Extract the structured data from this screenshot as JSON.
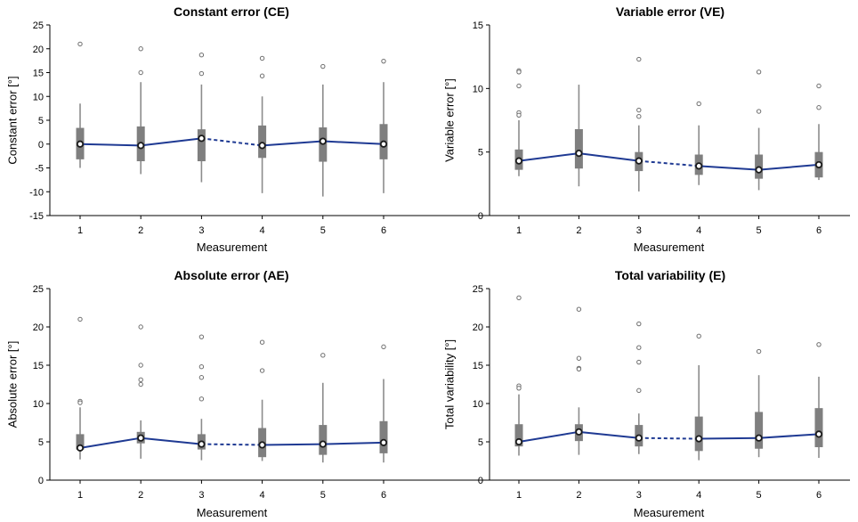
{
  "colors": {
    "line": "#1f3a93",
    "box": "#7f7f7f",
    "whisker": "#8c8c8c",
    "outlier": "#6f6f6f",
    "axis": "#000000"
  },
  "chart_data": [
    {
      "type": "box",
      "title": "Constant error (CE)",
      "xlabel": "Measurement",
      "ylabel": "Constant error [°]",
      "categories": [
        "1",
        "2",
        "3",
        "4",
        "5",
        "6"
      ],
      "ylim": [
        -15,
        25
      ],
      "yticks": [
        "-15",
        "-10",
        "-5",
        "0",
        "5",
        "10",
        "15",
        "20",
        "25"
      ],
      "median_line": [
        0,
        -0.3,
        1.2,
        -0.3,
        0.6,
        0
      ],
      "dashed_segment": [
        3,
        4
      ],
      "boxes": [
        {
          "whisker_low": -5,
          "q1": -3.2,
          "q3": 3.4,
          "whisker_high": 8.5,
          "outliers": [
            21
          ]
        },
        {
          "whisker_low": -6.3,
          "q1": -3.6,
          "q3": 3.7,
          "whisker_high": 13,
          "outliers": [
            20,
            15
          ]
        },
        {
          "whisker_low": -8,
          "q1": -3.6,
          "q3": 3.1,
          "whisker_high": 12.5,
          "outliers": [
            18.7,
            14.8
          ]
        },
        {
          "whisker_low": -10.3,
          "q1": -2.9,
          "q3": 3.9,
          "whisker_high": 10,
          "outliers": [
            18,
            14.3
          ]
        },
        {
          "whisker_low": -11,
          "q1": -3.7,
          "q3": 3.5,
          "whisker_high": 12.5,
          "outliers": [
            16.3
          ]
        },
        {
          "whisker_low": -10.3,
          "q1": -3.2,
          "q3": 4.2,
          "whisker_high": 13,
          "outliers": [
            17.4
          ]
        }
      ]
    },
    {
      "type": "box",
      "title": "Variable error (VE)",
      "xlabel": "Measurement",
      "ylabel": "Variable error [°]",
      "categories": [
        "1",
        "2",
        "3",
        "4",
        "5",
        "6"
      ],
      "ylim": [
        0,
        15
      ],
      "yticks": [
        "0",
        "5",
        "10",
        "15"
      ],
      "median_line": [
        4.3,
        4.9,
        4.3,
        3.9,
        3.6,
        4
      ],
      "dashed_segment": [
        3,
        4
      ],
      "boxes": [
        {
          "whisker_low": 3.1,
          "q1": 3.6,
          "q3": 5.2,
          "whisker_high": 7.5,
          "outliers": [
            11.4,
            11.3,
            10.2,
            8.1,
            7.9
          ]
        },
        {
          "whisker_low": 2.3,
          "q1": 3.7,
          "q3": 6.8,
          "whisker_high": 10.3,
          "outliers": []
        },
        {
          "whisker_low": 1.9,
          "q1": 3.5,
          "q3": 5,
          "whisker_high": 7.1,
          "outliers": [
            12.3,
            8.3,
            7.8
          ]
        },
        {
          "whisker_low": 2.4,
          "q1": 3.2,
          "q3": 4.8,
          "whisker_high": 7.1,
          "outliers": [
            8.8
          ]
        },
        {
          "whisker_low": 2,
          "q1": 2.9,
          "q3": 4.8,
          "whisker_high": 6.9,
          "outliers": [
            11.3,
            8.2
          ]
        },
        {
          "whisker_low": 2.8,
          "q1": 3,
          "q3": 5,
          "whisker_high": 7.2,
          "outliers": [
            10.2,
            8.5
          ]
        }
      ]
    },
    {
      "type": "box",
      "title": "Absolute error (AE)",
      "xlabel": "Measurement",
      "ylabel": "Absolute error [°]",
      "categories": [
        "1",
        "2",
        "3",
        "4",
        "5",
        "6"
      ],
      "ylim": [
        0,
        25
      ],
      "yticks": [
        "0",
        "5",
        "10",
        "15",
        "20",
        "25"
      ],
      "median_line": [
        4.2,
        5.5,
        4.7,
        4.6,
        4.7,
        4.9
      ],
      "dashed_segment": [
        3,
        4
      ],
      "boxes": [
        {
          "whisker_low": 2.7,
          "q1": 4,
          "q3": 6,
          "whisker_high": 9.5,
          "outliers": [
            21,
            10.3,
            10.1
          ]
        },
        {
          "whisker_low": 2.8,
          "q1": 4.8,
          "q3": 6.3,
          "whisker_high": 7.8,
          "outliers": [
            20,
            15,
            13.1,
            12.5
          ]
        },
        {
          "whisker_low": 2.6,
          "q1": 4,
          "q3": 6,
          "whisker_high": 8,
          "outliers": [
            18.7,
            14.8,
            13.4,
            10.6
          ]
        },
        {
          "whisker_low": 2.5,
          "q1": 3,
          "q3": 6.8,
          "whisker_high": 10.5,
          "outliers": [
            18,
            14.3
          ]
        },
        {
          "whisker_low": 2.3,
          "q1": 3.3,
          "q3": 7.2,
          "whisker_high": 12.7,
          "outliers": [
            16.3
          ]
        },
        {
          "whisker_low": 2.3,
          "q1": 3.5,
          "q3": 7.7,
          "whisker_high": 13.2,
          "outliers": [
            17.4
          ]
        }
      ]
    },
    {
      "type": "box",
      "title": "Total variability (E)",
      "xlabel": "Measurement",
      "ylabel": "Total variability [°]",
      "categories": [
        "1",
        "2",
        "3",
        "4",
        "5",
        "6"
      ],
      "ylim": [
        0,
        25
      ],
      "yticks": [
        "0",
        "5",
        "10",
        "15",
        "20",
        "25"
      ],
      "median_line": [
        5,
        6.3,
        5.5,
        5.4,
        5.5,
        6
      ],
      "dashed_segment": [
        3,
        4
      ],
      "boxes": [
        {
          "whisker_low": 3.2,
          "q1": 4.4,
          "q3": 7.3,
          "whisker_high": 11.2,
          "outliers": [
            23.8,
            12.3,
            12
          ]
        },
        {
          "whisker_low": 3.3,
          "q1": 5.1,
          "q3": 7.3,
          "whisker_high": 9.5,
          "outliers": [
            22.3,
            15.9,
            14.6,
            14.5
          ]
        },
        {
          "whisker_low": 3.4,
          "q1": 4.4,
          "q3": 7.2,
          "whisker_high": 8.7,
          "outliers": [
            20.4,
            17.3,
            15.4,
            11.7
          ]
        },
        {
          "whisker_low": 2.6,
          "q1": 3.8,
          "q3": 8.3,
          "whisker_high": 15,
          "outliers": [
            18.8
          ]
        },
        {
          "whisker_low": 3,
          "q1": 4.1,
          "q3": 8.9,
          "whisker_high": 13.7,
          "outliers": [
            16.8
          ]
        },
        {
          "whisker_low": 2.9,
          "q1": 4.3,
          "q3": 9.4,
          "whisker_high": 13.5,
          "outliers": [
            17.7
          ]
        }
      ]
    }
  ]
}
